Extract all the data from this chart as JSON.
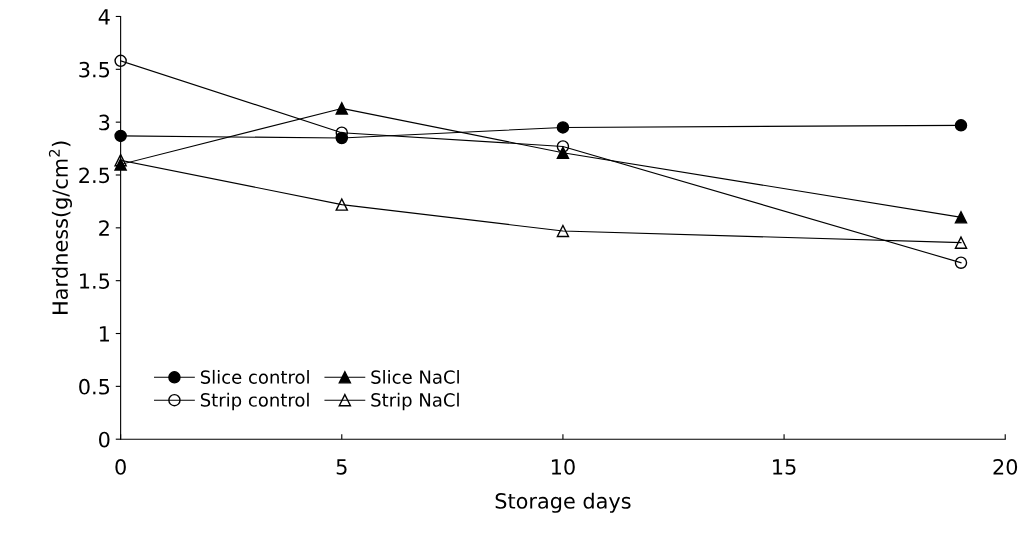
{
  "chart_data": {
    "type": "line",
    "xlabel": "Storage days",
    "ylabel": "Hardness(g/cm$^{2}$)",
    "x": [
      0,
      5,
      10,
      19
    ],
    "xlim": [
      0,
      20
    ],
    "xticks": [
      0,
      5,
      10,
      15,
      20
    ],
    "ylim": [
      0,
      4
    ],
    "yticks": [
      0,
      0.5,
      1,
      1.5,
      2,
      2.5,
      3,
      3.5,
      4
    ],
    "grid": false,
    "legend": "bottom left",
    "line_style": "solid",
    "series": [
      {
        "name": "Slice control",
        "color": "#000000",
        "marker": "circle",
        "values": [
          2.87,
          2.85,
          2.95,
          2.97
        ]
      },
      {
        "name": "Slice NaCl",
        "color": "#000000",
        "marker": "triangle",
        "values": [
          2.6,
          3.13,
          2.71,
          2.1
        ]
      },
      {
        "name": "Strip control",
        "color": "#000000",
        "marker": "circle",
        "values": [
          3.58,
          2.9,
          2.77,
          1.67
        ]
      },
      {
        "name": "Strip NaCl",
        "color": "#000000",
        "marker": "triangle",
        "values": [
          2.64,
          2.22,
          1.97,
          1.86
        ]
      }
    ]
  }
}
